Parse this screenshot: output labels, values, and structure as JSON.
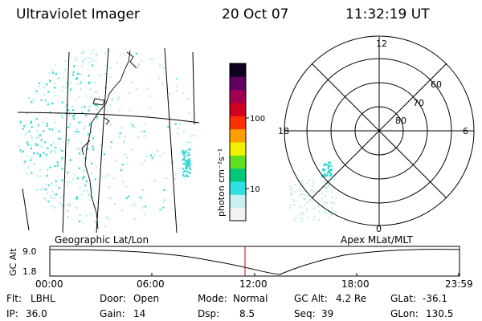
{
  "header": {
    "title": "Ultraviolet Imager",
    "date": "20 Oct 07",
    "time": "11:32:19 UT"
  },
  "colorbar": {
    "unit_label": "photon cm⁻²s⁻¹",
    "ticks": [
      "100",
      "10"
    ],
    "scale": "log",
    "colors": [
      "#f2f2f2",
      "#c8f0f0",
      "#30e0e0",
      "#00c878",
      "#60e020",
      "#f0f000",
      "#ffa000",
      "#ff3000",
      "#d00020",
      "#a00050",
      "#600060",
      "#100020"
    ]
  },
  "geo_panel": {
    "label": "Geographic Lat/Lon"
  },
  "polar_panel": {
    "label": "Apex MLat/MLT",
    "mlt_labels": {
      "top": "12",
      "left": "18",
      "right": "6",
      "bottom": "0"
    },
    "lat_labels": [
      "60",
      "70",
      "80"
    ]
  },
  "altitude_plot": {
    "ylabel": "GC Alt",
    "yticks": [
      "9.0",
      "1.8"
    ],
    "xticks": [
      "00:00",
      "06:00",
      "12:00",
      "18:00",
      "23:59"
    ],
    "current_time_marker": "11:32"
  },
  "info": {
    "filter_label": "Flt:",
    "filter": "LBHL",
    "door_label": "Door:",
    "door": "Open",
    "mode_label": "Mode:",
    "mode": "Normal",
    "gcalt_label": "GC Alt:",
    "gcalt": "4.2 Re",
    "glat_label": "GLat:",
    "glat": "-36.1",
    "ip_label": "IP:",
    "ip": "36.0",
    "gain_label": "Gain:",
    "gain": "14",
    "dsp_label": "Dsp:",
    "dsp": "8.5",
    "seq_label": "Seq:",
    "seq": "39",
    "glon_label": "GLon:",
    "glon": "130.5"
  },
  "colors": {
    "marker": "#d00000",
    "speckle": "#30d8d8",
    "speckle_faint": "#b8ecec"
  }
}
